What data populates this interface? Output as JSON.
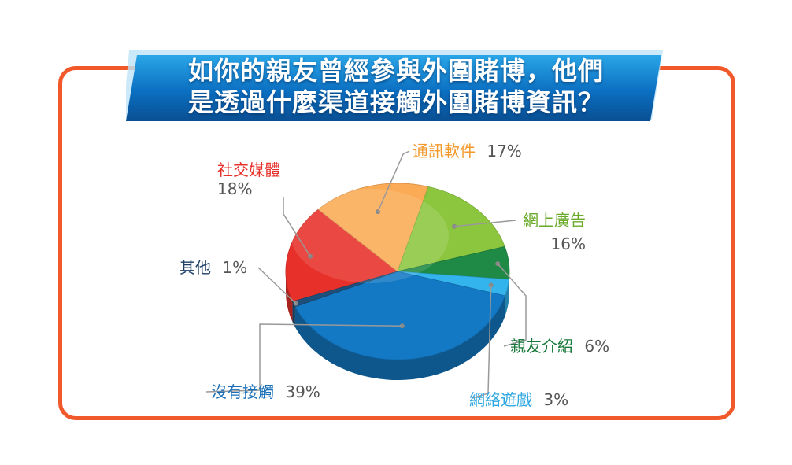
{
  "chart_data": {
    "type": "pie",
    "title_lines": [
      "如你的親友曾經參與外圍賭博，他們",
      "是透過什麼渠道接觸外圍賭博資訊？"
    ],
    "slices": [
      {
        "label": "社交媒體",
        "value": 18,
        "value_label": "18%",
        "color": "#e8302a",
        "label_color": "#e8302a"
      },
      {
        "label": "通訊軟件",
        "value": 17,
        "value_label": "17%",
        "color": "#fbab55",
        "label_color": "#f39a2c"
      },
      {
        "label": "網上廣告",
        "value": 16,
        "value_label": "16%",
        "color": "#8cc63f",
        "label_color": "#6aaa2a"
      },
      {
        "label": "親友介紹",
        "value": 6,
        "value_label": "6%",
        "color": "#1f8a45",
        "label_color": "#1a7a3c"
      },
      {
        "label": "網絡遊戲",
        "value": 3,
        "value_label": "3%",
        "color": "#33b4ec",
        "label_color": "#2aa6e0"
      },
      {
        "label": "沒有接觸",
        "value": 39,
        "value_label": "39%",
        "color": "#1479c4",
        "label_color": "#1a6fb8"
      },
      {
        "label": "其他",
        "value": 1,
        "value_label": "1%",
        "color": "#1d4f7a",
        "label_color": "#1d3f66"
      }
    ]
  }
}
